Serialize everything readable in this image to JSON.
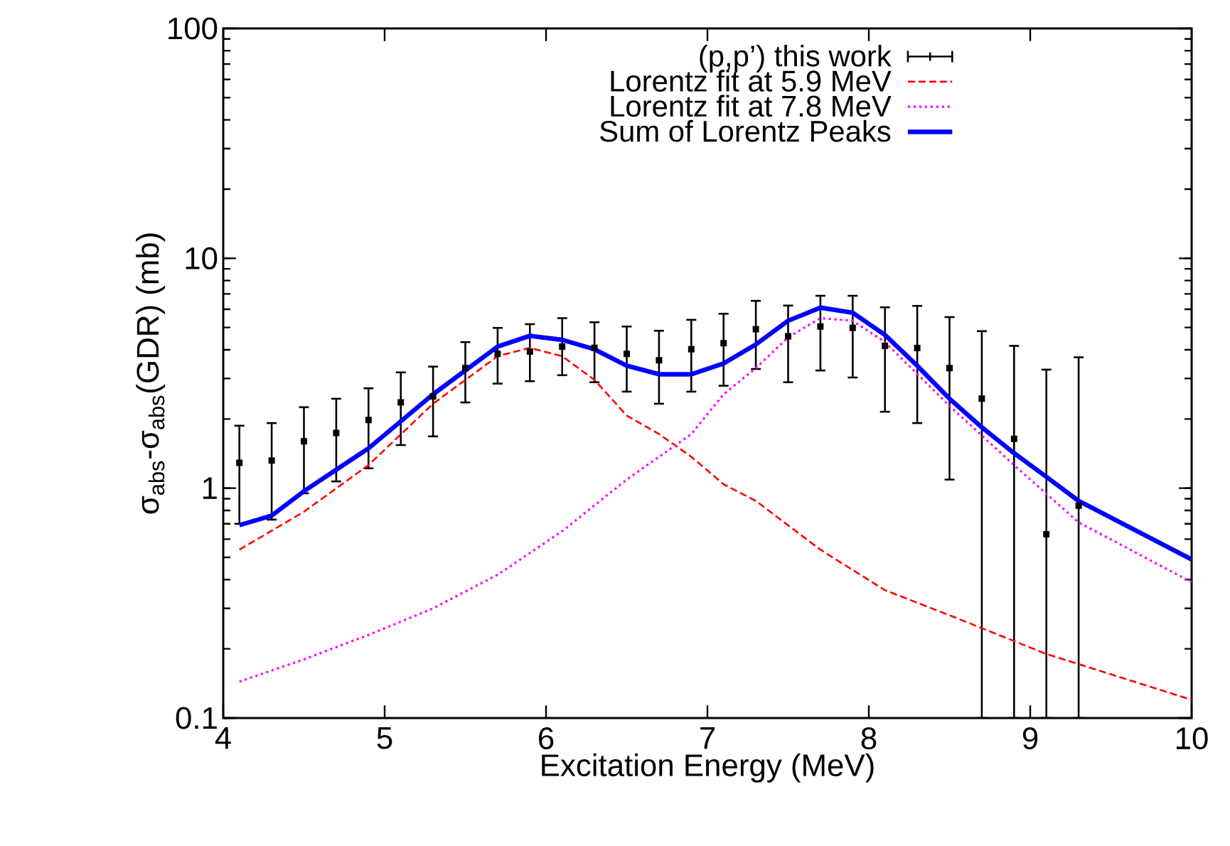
{
  "chart_data": {
    "type": "line",
    "xlabel": "Excitation Energy (MeV)",
    "ylabel": "σ$_{abs}$-σ$_{abs}$(GDR) (mb)",
    "log": "y",
    "xlim": [
      4,
      10
    ],
    "ylim": [
      0.1,
      100
    ],
    "xticks": [
      4,
      5,
      6,
      7,
      8,
      9,
      10
    ],
    "yticks": [
      0.1,
      1,
      10,
      100
    ],
    "legend": "top",
    "series": [
      {
        "name": "(p,p’) this work",
        "type": "scatter",
        "marker": "square",
        "color": "#000000",
        "x": [
          4.1,
          4.3,
          4.5,
          4.7,
          4.9,
          5.1,
          5.3,
          5.5,
          5.7,
          5.9,
          6.1,
          6.3,
          6.5,
          6.7,
          6.9,
          7.1,
          7.3,
          7.5,
          7.7,
          7.9,
          8.1,
          8.3,
          8.5,
          8.7,
          8.9,
          9.1,
          9.3
        ],
        "values": [
          1.29,
          1.32,
          1.6,
          1.74,
          1.98,
          2.36,
          2.51,
          3.33,
          3.84,
          3.93,
          4.13,
          4.08,
          3.84,
          3.6,
          4.02,
          4.27,
          4.92,
          4.58,
          5.05,
          4.98,
          4.16,
          4.07,
          3.33,
          2.45,
          1.64,
          0.63,
          0.84
        ],
        "errors": [
          [
            0.7,
            1.87
          ],
          [
            0.73,
            1.92
          ],
          [
            0.95,
            2.25
          ],
          [
            1.07,
            2.45
          ],
          [
            1.22,
            2.72
          ],
          [
            1.54,
            3.19
          ],
          [
            1.68,
            3.38
          ],
          [
            2.36,
            4.32
          ],
          [
            2.85,
            4.98
          ],
          [
            2.92,
            5.17
          ],
          [
            3.1,
            5.49
          ],
          [
            2.89,
            5.27
          ],
          [
            2.63,
            5.05
          ],
          [
            2.33,
            4.84
          ],
          [
            2.63,
            5.4
          ],
          [
            2.79,
            5.74
          ],
          [
            3.3,
            6.53
          ],
          [
            2.89,
            6.23
          ],
          [
            3.25,
            6.87
          ],
          [
            3.03,
            6.87
          ],
          [
            2.15,
            6.12
          ],
          [
            1.92,
            6.21
          ],
          [
            1.09,
            5.55
          ],
          [
            0.1,
            4.82
          ],
          [
            0.1,
            4.16
          ],
          [
            0.1,
            3.28
          ],
          [
            0.1,
            3.71
          ]
        ]
      },
      {
        "name": "Lorentz fit at 5.9 MeV",
        "color": "#ff0000",
        "line_style": "dashed",
        "x": [
          4.1,
          4.5,
          4.9,
          5.3,
          5.7,
          5.9,
          6.1,
          6.3,
          6.5,
          6.7,
          6.9,
          7.1,
          7.3,
          7.7,
          8.1,
          8.5,
          8.7,
          9.1,
          9.5,
          10
        ],
        "values": [
          0.54,
          0.79,
          1.26,
          2.33,
          3.75,
          4.08,
          3.75,
          2.96,
          2.07,
          1.72,
          1.37,
          1.04,
          0.88,
          0.54,
          0.36,
          0.28,
          0.246,
          0.19,
          0.155,
          0.12
        ]
      },
      {
        "name": "Lorentz fit at 7.8 MeV",
        "color": "#ff00ff",
        "line_style": "dotted",
        "x": [
          4.1,
          4.5,
          4.9,
          5.3,
          5.7,
          6.1,
          6.5,
          6.9,
          7.1,
          7.3,
          7.5,
          7.7,
          7.9,
          8.1,
          8.5,
          8.9,
          9.3,
          10
        ],
        "values": [
          0.144,
          0.18,
          0.23,
          0.3,
          0.42,
          0.65,
          1.09,
          1.72,
          2.56,
          3.33,
          4.53,
          5.49,
          5.35,
          4.32,
          2.28,
          1.26,
          0.71,
          0.39
        ]
      },
      {
        "name": "Sum of Lorentz Peaks",
        "color": "#0000ff",
        "line_style": "solid",
        "x": [
          4.1,
          4.3,
          4.5,
          4.9,
          5.3,
          5.7,
          5.9,
          6.1,
          6.3,
          6.5,
          6.7,
          6.9,
          7.1,
          7.3,
          7.5,
          7.7,
          7.9,
          8.1,
          8.3,
          8.5,
          8.7,
          8.9,
          9.1,
          9.3,
          10
        ],
        "values": [
          0.69,
          0.76,
          0.97,
          1.49,
          2.56,
          4.13,
          4.6,
          4.42,
          4.02,
          3.41,
          3.13,
          3.13,
          3.49,
          4.22,
          5.35,
          6.1,
          5.8,
          4.64,
          3.41,
          2.45,
          1.84,
          1.42,
          1.12,
          0.88,
          0.49
        ]
      }
    ]
  }
}
